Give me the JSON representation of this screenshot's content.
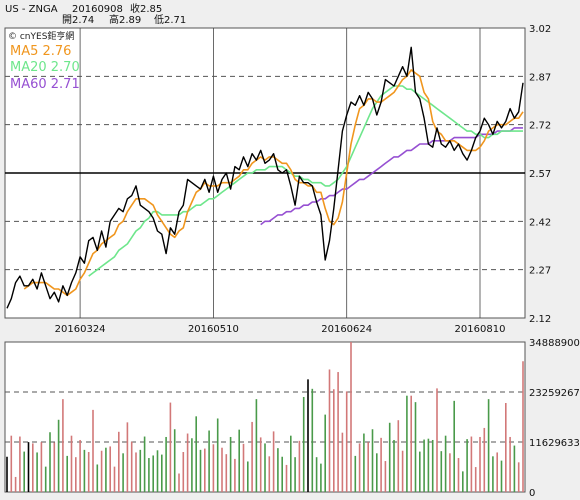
{
  "header": {
    "symbol": "US - ZNGA",
    "date": "20160908",
    "close_label": "收2.85",
    "open_label": "開2.74",
    "high_label": "高2.89",
    "low_label": "低2.71"
  },
  "watermark": "© cnYES鉅亨網",
  "colors": {
    "price": "#000000",
    "ma5": "#f0961e",
    "ma20": "#6ee68c",
    "ma60": "#9650d2",
    "vol_up": "#d27878",
    "vol_down": "#4a9a4a",
    "vol_flat": "#000000",
    "panel_bg": "#ffffff",
    "page_bg": "#efefef"
  },
  "chart_data": [
    {
      "type": "line",
      "x_tick_labels": [
        "20160324",
        "20160510",
        "20160624",
        "20160810"
      ],
      "y_tick_labels": [
        "3.02",
        "2.87",
        "2.72",
        "2.57",
        "2.42",
        "2.27",
        "2.12"
      ],
      "ylim": [
        2.12,
        3.02
      ],
      "reference_line": 2.57,
      "grid": true,
      "legend": [
        {
          "key": "ma5",
          "label": "MA5 2.76"
        },
        {
          "key": "ma20",
          "label": "MA20 2.70"
        },
        {
          "key": "ma60",
          "label": "MA60 2.71"
        }
      ],
      "series": [
        {
          "key": "close",
          "values": [
            2.15,
            2.18,
            2.23,
            2.25,
            2.22,
            2.22,
            2.24,
            2.21,
            2.26,
            2.22,
            2.18,
            2.2,
            2.17,
            2.22,
            2.19,
            2.23,
            2.26,
            2.31,
            2.29,
            2.36,
            2.37,
            2.33,
            2.39,
            2.34,
            2.42,
            2.44,
            2.46,
            2.45,
            2.49,
            2.5,
            2.53,
            2.47,
            2.46,
            2.45,
            2.43,
            2.39,
            2.38,
            2.32,
            2.4,
            2.38,
            2.45,
            2.47,
            2.55,
            2.54,
            2.53,
            2.52,
            2.55,
            2.51,
            2.56,
            2.51,
            2.55,
            2.57,
            2.52,
            2.59,
            2.58,
            2.62,
            2.59,
            2.63,
            2.61,
            2.64,
            2.6,
            2.61,
            2.63,
            2.58,
            2.57,
            2.58,
            2.53,
            2.47,
            2.56,
            2.54,
            2.54,
            2.53,
            2.48,
            2.44,
            2.3,
            2.36,
            2.46,
            2.58,
            2.7,
            2.75,
            2.79,
            2.78,
            2.81,
            2.78,
            2.82,
            2.8,
            2.75,
            2.79,
            2.86,
            2.85,
            2.84,
            2.87,
            2.9,
            2.87,
            2.96,
            2.82,
            2.8,
            2.74,
            2.66,
            2.65,
            2.71,
            2.66,
            2.65,
            2.67,
            2.64,
            2.66,
            2.63,
            2.61,
            2.64,
            2.68,
            2.7,
            2.74,
            2.72,
            2.69,
            2.73,
            2.71,
            2.73,
            2.77,
            2.74,
            2.76,
            2.85
          ]
        },
        {
          "key": "ma5",
          "values": [
            null,
            null,
            null,
            null,
            2.21,
            2.22,
            2.23,
            2.23,
            2.23,
            2.23,
            2.22,
            2.21,
            2.21,
            2.2,
            2.19,
            2.2,
            2.21,
            2.24,
            2.26,
            2.29,
            2.32,
            2.33,
            2.35,
            2.36,
            2.37,
            2.38,
            2.41,
            2.42,
            2.45,
            2.47,
            2.49,
            2.49,
            2.49,
            2.48,
            2.47,
            2.44,
            2.42,
            2.4,
            2.38,
            2.37,
            2.39,
            2.4,
            2.45,
            2.48,
            2.51,
            2.52,
            2.54,
            2.53,
            2.53,
            2.53,
            2.54,
            2.54,
            2.54,
            2.55,
            2.56,
            2.58,
            2.58,
            2.6,
            2.61,
            2.62,
            2.61,
            2.62,
            2.62,
            2.61,
            2.6,
            2.6,
            2.58,
            2.55,
            2.54,
            2.54,
            2.53,
            2.53,
            2.51,
            2.51,
            2.46,
            2.42,
            2.41,
            2.43,
            2.48,
            2.57,
            2.66,
            2.72,
            2.77,
            2.78,
            2.8,
            2.8,
            2.79,
            2.79,
            2.8,
            2.81,
            2.82,
            2.84,
            2.86,
            2.87,
            2.89,
            2.88,
            2.87,
            2.82,
            2.8,
            2.73,
            2.7,
            2.69,
            2.67,
            2.67,
            2.67,
            2.66,
            2.65,
            2.64,
            2.64,
            2.64,
            2.65,
            2.67,
            2.7,
            2.71,
            2.72,
            2.72,
            2.72,
            2.73,
            2.74,
            2.74,
            2.76
          ]
        },
        {
          "key": "ma20",
          "values": [
            null,
            null,
            null,
            null,
            null,
            null,
            null,
            null,
            null,
            null,
            null,
            null,
            null,
            null,
            null,
            null,
            null,
            null,
            null,
            2.25,
            2.26,
            2.27,
            2.28,
            2.29,
            2.3,
            2.31,
            2.33,
            2.34,
            2.35,
            2.37,
            2.39,
            2.4,
            2.42,
            2.43,
            2.45,
            2.45,
            2.44,
            2.44,
            2.44,
            2.44,
            2.44,
            2.45,
            2.45,
            2.46,
            2.47,
            2.47,
            2.48,
            2.49,
            2.49,
            2.5,
            2.51,
            2.52,
            2.53,
            2.54,
            2.55,
            2.56,
            2.57,
            2.57,
            2.58,
            2.58,
            2.58,
            2.59,
            2.59,
            2.59,
            2.59,
            2.58,
            2.57,
            2.56,
            2.56,
            2.55,
            2.55,
            2.54,
            2.54,
            2.54,
            2.53,
            2.53,
            2.54,
            2.55,
            2.57,
            2.59,
            2.62,
            2.65,
            2.68,
            2.71,
            2.74,
            2.77,
            2.79,
            2.81,
            2.82,
            2.83,
            2.84,
            2.84,
            2.84,
            2.83,
            2.83,
            2.82,
            2.81,
            2.8,
            2.79,
            2.78,
            2.77,
            2.76,
            2.75,
            2.74,
            2.73,
            2.72,
            2.71,
            2.7,
            2.7,
            2.69,
            2.69,
            2.68,
            2.68,
            2.69,
            2.69,
            2.7,
            2.7,
            2.7,
            2.7,
            2.7,
            2.7
          ]
        },
        {
          "key": "ma60",
          "values": [
            null,
            null,
            null,
            null,
            null,
            null,
            null,
            null,
            null,
            null,
            null,
            null,
            null,
            null,
            null,
            null,
            null,
            null,
            null,
            null,
            null,
            null,
            null,
            null,
            null,
            null,
            null,
            null,
            null,
            null,
            null,
            null,
            null,
            null,
            null,
            null,
            null,
            null,
            null,
            null,
            null,
            null,
            null,
            null,
            null,
            null,
            null,
            null,
            null,
            null,
            null,
            null,
            null,
            null,
            null,
            null,
            null,
            null,
            null,
            2.41,
            2.42,
            2.42,
            2.43,
            2.44,
            2.44,
            2.45,
            2.45,
            2.46,
            2.46,
            2.47,
            2.47,
            2.48,
            2.48,
            2.49,
            2.49,
            2.5,
            2.5,
            2.51,
            2.52,
            2.52,
            2.53,
            2.54,
            2.55,
            2.55,
            2.56,
            2.57,
            2.58,
            2.59,
            2.6,
            2.61,
            2.62,
            2.62,
            2.63,
            2.64,
            2.64,
            2.65,
            2.66,
            2.66,
            2.66,
            2.67,
            2.67,
            2.67,
            2.67,
            2.67,
            2.68,
            2.68,
            2.68,
            2.68,
            2.68,
            2.68,
            2.69,
            2.69,
            2.69,
            2.69,
            2.7,
            2.7,
            2.7,
            2.7,
            2.71,
            2.71,
            2.71
          ]
        }
      ]
    },
    {
      "type": "bar",
      "y_tick_labels": [
        "34888900",
        "23259267",
        "11629633",
        "0"
      ],
      "ylim": [
        0,
        34888900
      ],
      "grid": true,
      "values": [
        8.2,
        13.1,
        3.5,
        12.9,
        9.4,
        11.6,
        11.3,
        9.2,
        11.6,
        5.9,
        13.9,
        11.5,
        16.8,
        21.6,
        8.4,
        13.1,
        8.1,
        12.1,
        9.8,
        9.3,
        19.1,
        6.4,
        9.6,
        10.3,
        10.6,
        5.9,
        14.0,
        9.0,
        16.2,
        11.7,
        9.2,
        9.8,
        12.9,
        7.9,
        8.5,
        9.7,
        8.7,
        12.8,
        20.8,
        14.6,
        4.3,
        9.3,
        13.6,
        12.5,
        17.6,
        9.8,
        10.1,
        14.3,
        11.1,
        17.1,
        10.3,
        8.8,
        12.8,
        7.7,
        14.5,
        11.2,
        7.1,
        16.3,
        21.6,
        12.7,
        11.3,
        8.3,
        14.1,
        10.2,
        8.2,
        6.3,
        13.1,
        8.1,
        11.9,
        22.1,
        26.2,
        24.0,
        8.1,
        6.6,
        18.0,
        28.5,
        23.9,
        27.9,
        13.8,
        23.4,
        34.9,
        8.4,
        11.3,
        13.6,
        11.6,
        14.6,
        9.0,
        12.6,
        7.2,
        16.1,
        12.1,
        16.7,
        9.6,
        22.4,
        22.4,
        20.9,
        9.4,
        12.2,
        12.4,
        12.1,
        24.1,
        9.5,
        13.1,
        9.0,
        21.2,
        7.9,
        4.8,
        12.3,
        12.9,
        5.8,
        12.8,
        14.9,
        21.6,
        8.3,
        9.2,
        7.3,
        20.7,
        12.8,
        10.8,
        6.9,
        30.4
      ],
      "value_unit": "millions"
    }
  ]
}
